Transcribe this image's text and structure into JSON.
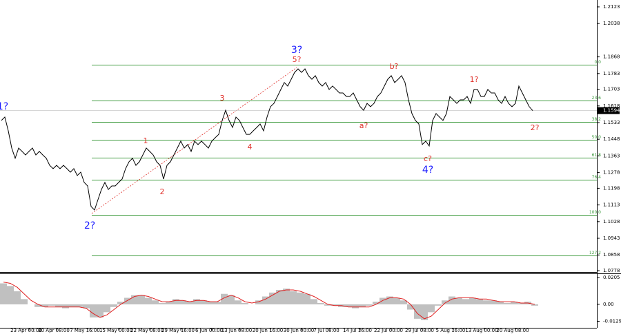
{
  "chart_data": [
    {
      "type": "line",
      "color": "#000000",
      "categories": [
        null,
        null,
        null,
        null,
        null,
        null,
        null,
        null,
        "23 Apr 00:00",
        null,
        null,
        null,
        null,
        null,
        null,
        null,
        "30 Apr 08:00",
        null,
        null,
        null,
        null,
        null,
        null,
        null,
        null,
        "7 May 16:00",
        null,
        null,
        null,
        null,
        null,
        null,
        null,
        null,
        "15 May 00:00",
        null,
        null,
        null,
        null,
        null,
        null,
        null,
        null,
        "22 May 08:00",
        null,
        null,
        null,
        null,
        null,
        null,
        null,
        null,
        "29 May 16:00",
        null,
        null,
        null,
        null,
        null,
        null,
        null,
        null,
        "6 Jun 00:00",
        null,
        null,
        null,
        null,
        null,
        null,
        null,
        "13 Jun 08:00",
        null,
        null,
        null,
        null,
        null,
        null,
        null,
        null,
        "20 Jun 16:00",
        null,
        null,
        null,
        null,
        null,
        null,
        null,
        null,
        "30 Jun 00:00",
        null,
        null,
        null,
        null,
        null,
        null,
        null,
        "7 Jul 08:00",
        null,
        null,
        null,
        null,
        null,
        null,
        null,
        null,
        "14 Jul 16:00",
        null,
        null,
        null,
        null,
        null,
        null,
        null,
        null,
        "22 Jul 00:00",
        null,
        null,
        null,
        null,
        null,
        null,
        null,
        null,
        "29 Jul 08:00",
        null,
        null,
        null,
        null,
        null,
        null,
        null,
        null,
        "5 Aug 16:00",
        null,
        null,
        null,
        null,
        null,
        null,
        null,
        null,
        "13 Aug 00:00",
        null,
        null,
        null,
        null,
        null,
        null,
        null,
        null,
        "20 Aug 08:00",
        null,
        null,
        null,
        null,
        null
      ],
      "values": [
        1.1544,
        1.1561,
        1.1491,
        1.1403,
        1.1351,
        1.1403,
        1.1386,
        1.1368,
        1.1386,
        1.1403,
        1.1368,
        1.1386,
        1.1368,
        1.1351,
        1.1315,
        1.1298,
        1.1315,
        1.1298,
        1.1315,
        1.1298,
        1.128,
        1.1298,
        1.1263,
        1.128,
        1.1228,
        1.121,
        1.1105,
        1.1087,
        1.114,
        1.1192,
        1.1228,
        1.1192,
        1.121,
        1.121,
        1.1228,
        1.1245,
        1.1298,
        1.1333,
        1.1351,
        1.1315,
        1.1333,
        1.1368,
        1.1403,
        1.1386,
        1.1368,
        1.1333,
        1.1315,
        1.1245,
        1.1315,
        1.1333,
        1.1368,
        1.1403,
        1.1438,
        1.1403,
        1.1421,
        1.1386,
        1.1438,
        1.1421,
        1.1438,
        1.1421,
        1.1403,
        1.1438,
        1.1456,
        1.1473,
        1.1544,
        1.1596,
        1.1544,
        1.1508,
        1.1561,
        1.1544,
        1.1508,
        1.1473,
        1.1473,
        1.1491,
        1.1508,
        1.1526,
        1.1491,
        1.1561,
        1.1614,
        1.1631,
        1.1666,
        1.1702,
        1.1737,
        1.1719,
        1.1754,
        1.1789,
        1.1807,
        1.1789,
        1.1807,
        1.1772,
        1.1754,
        1.1772,
        1.1737,
        1.1719,
        1.1737,
        1.1702,
        1.1719,
        1.1702,
        1.1684,
        1.1684,
        1.1666,
        1.1666,
        1.1684,
        1.1649,
        1.1614,
        1.1596,
        1.1631,
        1.1614,
        1.1631,
        1.1666,
        1.1684,
        1.1719,
        1.1754,
        1.1772,
        1.1737,
        1.1754,
        1.1772,
        1.1737,
        1.1649,
        1.1579,
        1.1544,
        1.1526,
        1.1421,
        1.1438,
        1.1414,
        1.1544,
        1.1579,
        1.1561,
        1.1544,
        1.1579,
        1.1666,
        1.1649,
        1.1631,
        1.1649,
        1.1649,
        1.1666,
        1.1631,
        1.1702,
        1.1702,
        1.1666,
        1.1666,
        1.1702,
        1.1684,
        1.1684,
        1.1649,
        1.1631,
        1.1666,
        1.1631,
        1.1614,
        1.1631,
        1.1719,
        1.1684,
        1.1649,
        1.1614,
        1.1594
      ],
      "ylim": [
        1.0771,
        1.2158
      ],
      "yticks": [
        1.2123,
        1.2038,
        1.1868,
        1.1783,
        1.1703,
        1.1618,
        1.1533,
        1.1448,
        1.1363,
        1.1278,
        1.1198,
        1.1113,
        1.1028,
        1.0943,
        1.0858,
        1.0778
      ],
      "last_price": 1.1594,
      "fib_color": "#3c9a3c",
      "fib_levels": [
        {
          "value": 1.1828,
          "label": "0.0"
        },
        {
          "value": 1.1645,
          "label": "23.6"
        },
        {
          "value": 1.1537,
          "label": "38.2"
        },
        {
          "value": 1.1445,
          "label": "50.0"
        },
        {
          "value": 1.1354,
          "label": "61.8"
        },
        {
          "value": 1.1242,
          "label": "76.4"
        },
        {
          "value": 1.1063,
          "label": "100.0"
        },
        {
          "value": 1.0855,
          "label": "127.2"
        }
      ],
      "annotations": [
        {
          "text": "1?",
          "color": "#1a1aff"
        },
        {
          "text": "2?",
          "color": "#1a1aff"
        },
        {
          "text": "3?",
          "color": "#1a1aff"
        },
        {
          "text": "4?",
          "color": "#1a1aff"
        },
        {
          "text": "2?",
          "color": "#e0302a"
        },
        {
          "text": "1",
          "color": "#e0302a"
        },
        {
          "text": "2",
          "color": "#e0302a"
        },
        {
          "text": "3",
          "color": "#e0302a"
        },
        {
          "text": "4",
          "color": "#e0302a"
        },
        {
          "text": "5?",
          "color": "#e0302a"
        },
        {
          "text": "a?",
          "color": "#e0302a"
        },
        {
          "text": "b?",
          "color": "#e0302a"
        },
        {
          "text": "c?",
          "color": "#e0302a"
        },
        {
          "text": "1?",
          "color": "#e0302a"
        }
      ]
    },
    {
      "type": "histogram-oscillator",
      "series": [
        {
          "color": "#c0c0c0",
          "values": [
            0.016,
            0.014,
            0.01,
            0.004,
            0.0,
            -0.002,
            -0.002,
            -0.001,
            -0.002,
            -0.003,
            -0.002,
            -0.002,
            -0.003,
            -0.01,
            -0.01,
            -0.006,
            -0.002,
            0.002,
            0.005,
            0.007,
            0.007,
            0.005,
            0.003,
            0.001,
            0.002,
            0.004,
            0.003,
            0.002,
            0.004,
            0.003,
            0.002,
            0.002,
            0.008,
            0.007,
            0.003,
            0.001,
            0.0,
            0.003,
            0.006,
            0.009,
            0.011,
            0.012,
            0.01,
            0.009,
            0.008,
            0.004,
            0.001,
            -0.001,
            -0.001,
            -0.002,
            -0.002,
            -0.003,
            -0.002,
            -0.001,
            0.002,
            0.005,
            0.006,
            0.005,
            0.003,
            -0.004,
            -0.011,
            -0.012,
            -0.006,
            -0.001,
            0.003,
            0.006,
            0.005,
            0.004,
            0.005,
            0.004,
            0.003,
            0.003,
            0.002,
            0.001,
            0.002,
            0.001,
            0.002,
            -0.001
          ]
        },
        {
          "color": "#e02020",
          "values": [
            0.017,
            0.016,
            0.013,
            0.008,
            0.003,
            0.0,
            -0.002,
            -0.002,
            -0.002,
            -0.002,
            -0.002,
            -0.002,
            -0.003,
            -0.007,
            -0.01,
            -0.008,
            -0.004,
            0.0,
            0.003,
            0.006,
            0.007,
            0.006,
            0.004,
            0.002,
            0.002,
            0.003,
            0.003,
            0.002,
            0.003,
            0.003,
            0.002,
            0.002,
            0.005,
            0.007,
            0.005,
            0.002,
            0.001,
            0.002,
            0.004,
            0.007,
            0.01,
            0.011,
            0.011,
            0.01,
            0.008,
            0.006,
            0.003,
            0.0,
            -0.001,
            -0.001,
            -0.002,
            -0.002,
            -0.002,
            -0.002,
            0.0,
            0.003,
            0.005,
            0.005,
            0.004,
            0.0,
            -0.007,
            -0.011,
            -0.009,
            -0.004,
            0.001,
            0.004,
            0.005,
            0.005,
            0.005,
            0.004,
            0.004,
            0.003,
            0.002,
            0.002,
            0.002,
            0.001,
            0.001,
            0.0
          ]
        }
      ],
      "ylim": [
        -0.0179,
        0.0231
      ],
      "yticks": [
        0.0205,
        {
          "value": 0,
          "label": "0.00"
        },
        -0.0129
      ]
    }
  ]
}
